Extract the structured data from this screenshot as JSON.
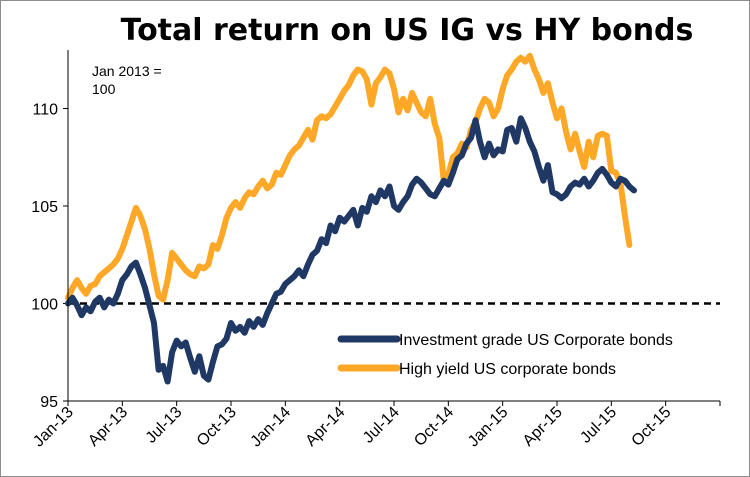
{
  "chart_data": {
    "type": "line",
    "title": "Total return on US IG vs HY bonds",
    "annotation": [
      "Jan 2013 =",
      "100"
    ],
    "xlabel": "",
    "ylabel": "",
    "x_ticks": [
      "Jan-13",
      "Apr-13",
      "Jul-13",
      "Oct-13",
      "Jan-14",
      "Apr-14",
      "Jul-14",
      "Oct-14",
      "Jan-15",
      "Apr-15",
      "Jul-15",
      "Oct-15"
    ],
    "y_ticks": [
      "95",
      "100",
      "105",
      "110"
    ],
    "ylim": [
      95,
      113
    ],
    "xlim_months": [
      0,
      36
    ],
    "reference_line": {
      "y": 100,
      "style": "dashed",
      "color": "#000000"
    },
    "legend_position": "bottom-right",
    "series": [
      {
        "name": "Investment grade US Corporate bonds",
        "color": "#1f3864",
        "points": [
          [
            0.0,
            100.0
          ],
          [
            0.25,
            100.3
          ],
          [
            0.5,
            99.9
          ],
          [
            0.75,
            99.4
          ],
          [
            1.0,
            99.8
          ],
          [
            1.25,
            99.6
          ],
          [
            1.5,
            100.1
          ],
          [
            1.75,
            100.3
          ],
          [
            2.0,
            99.8
          ],
          [
            2.25,
            100.2
          ],
          [
            2.5,
            100.0
          ],
          [
            2.75,
            100.5
          ],
          [
            3.0,
            101.2
          ],
          [
            3.25,
            101.5
          ],
          [
            3.5,
            101.9
          ],
          [
            3.75,
            102.1
          ],
          [
            4.0,
            101.5
          ],
          [
            4.25,
            100.8
          ],
          [
            4.5,
            99.9
          ],
          [
            4.75,
            99.0
          ],
          [
            5.0,
            96.6
          ],
          [
            5.25,
            96.8
          ],
          [
            5.5,
            96.0
          ],
          [
            5.75,
            97.5
          ],
          [
            6.0,
            98.1
          ],
          [
            6.25,
            97.8
          ],
          [
            6.5,
            98.0
          ],
          [
            6.75,
            97.2
          ],
          [
            7.0,
            96.5
          ],
          [
            7.25,
            97.3
          ],
          [
            7.5,
            96.3
          ],
          [
            7.75,
            96.1
          ],
          [
            8.0,
            97.0
          ],
          [
            8.25,
            97.8
          ],
          [
            8.5,
            97.9
          ],
          [
            8.75,
            98.2
          ],
          [
            9.0,
            99.0
          ],
          [
            9.25,
            98.6
          ],
          [
            9.5,
            98.8
          ],
          [
            9.75,
            98.5
          ],
          [
            10.0,
            99.1
          ],
          [
            10.25,
            98.8
          ],
          [
            10.5,
            99.2
          ],
          [
            10.75,
            98.9
          ],
          [
            11.0,
            99.5
          ],
          [
            11.25,
            100.0
          ],
          [
            11.5,
            100.5
          ],
          [
            11.75,
            100.6
          ],
          [
            12.0,
            101.0
          ],
          [
            12.25,
            101.2
          ],
          [
            12.5,
            101.4
          ],
          [
            12.75,
            101.7
          ],
          [
            13.0,
            101.4
          ],
          [
            13.25,
            102.0
          ],
          [
            13.5,
            102.5
          ],
          [
            13.75,
            102.7
          ],
          [
            14.0,
            103.3
          ],
          [
            14.25,
            103.1
          ],
          [
            14.5,
            104.0
          ],
          [
            14.75,
            103.7
          ],
          [
            15.0,
            104.4
          ],
          [
            15.25,
            104.2
          ],
          [
            15.5,
            104.5
          ],
          [
            15.75,
            104.8
          ],
          [
            16.0,
            104.0
          ],
          [
            16.25,
            104.9
          ],
          [
            16.5,
            104.7
          ],
          [
            16.75,
            105.5
          ],
          [
            17.0,
            105.2
          ],
          [
            17.25,
            105.8
          ],
          [
            17.5,
            105.5
          ],
          [
            17.75,
            106.0
          ],
          [
            18.0,
            105.0
          ],
          [
            18.25,
            104.8
          ],
          [
            18.5,
            105.2
          ],
          [
            18.75,
            105.5
          ],
          [
            19.0,
            106.1
          ],
          [
            19.25,
            106.4
          ],
          [
            19.5,
            106.2
          ],
          [
            19.75,
            105.9
          ],
          [
            20.0,
            105.6
          ],
          [
            20.25,
            105.5
          ],
          [
            20.5,
            105.9
          ],
          [
            20.75,
            106.3
          ],
          [
            21.0,
            106.1
          ],
          [
            21.25,
            106.7
          ],
          [
            21.5,
            107.4
          ],
          [
            21.75,
            107.6
          ],
          [
            22.0,
            108.2
          ],
          [
            22.25,
            108.5
          ],
          [
            22.5,
            109.4
          ],
          [
            22.75,
            108.3
          ],
          [
            23.0,
            107.5
          ],
          [
            23.25,
            108.2
          ],
          [
            23.5,
            107.6
          ],
          [
            23.75,
            107.9
          ],
          [
            24.0,
            107.8
          ],
          [
            24.25,
            108.9
          ],
          [
            24.5,
            109.0
          ],
          [
            24.75,
            108.3
          ],
          [
            25.0,
            109.5
          ],
          [
            25.25,
            109.0
          ],
          [
            25.5,
            108.3
          ],
          [
            25.75,
            107.8
          ],
          [
            26.0,
            107.0
          ],
          [
            26.25,
            106.3
          ],
          [
            26.5,
            107.1
          ],
          [
            26.75,
            105.7
          ],
          [
            27.0,
            105.6
          ],
          [
            27.25,
            105.4
          ],
          [
            27.5,
            105.6
          ],
          [
            27.75,
            106.0
          ],
          [
            28.0,
            106.2
          ],
          [
            28.25,
            106.1
          ],
          [
            28.5,
            106.4
          ],
          [
            28.75,
            106.0
          ],
          [
            29.0,
            106.3
          ],
          [
            29.25,
            106.7
          ],
          [
            29.5,
            106.9
          ],
          [
            29.75,
            106.6
          ],
          [
            30.0,
            106.2
          ],
          [
            30.25,
            106.0
          ],
          [
            30.5,
            106.4
          ],
          [
            30.75,
            106.3
          ],
          [
            31.0,
            106.0
          ],
          [
            31.25,
            105.8
          ]
        ]
      },
      {
        "name": "High yield US corporate bonds",
        "color": "#ffa726",
        "points": [
          [
            0.0,
            100.3
          ],
          [
            0.25,
            100.8
          ],
          [
            0.5,
            101.2
          ],
          [
            0.75,
            100.8
          ],
          [
            1.0,
            100.5
          ],
          [
            1.25,
            100.9
          ],
          [
            1.5,
            101.0
          ],
          [
            1.75,
            101.4
          ],
          [
            2.0,
            101.6
          ],
          [
            2.25,
            101.8
          ],
          [
            2.5,
            102.0
          ],
          [
            2.75,
            102.3
          ],
          [
            3.0,
            102.8
          ],
          [
            3.25,
            103.5
          ],
          [
            3.5,
            104.2
          ],
          [
            3.75,
            104.9
          ],
          [
            4.0,
            104.5
          ],
          [
            4.25,
            103.8
          ],
          [
            4.5,
            102.8
          ],
          [
            4.75,
            101.5
          ],
          [
            5.0,
            100.4
          ],
          [
            5.25,
            100.2
          ],
          [
            5.5,
            101.2
          ],
          [
            5.75,
            102.6
          ],
          [
            6.0,
            102.3
          ],
          [
            6.25,
            102.0
          ],
          [
            6.5,
            101.7
          ],
          [
            6.75,
            101.5
          ],
          [
            7.0,
            101.4
          ],
          [
            7.25,
            101.9
          ],
          [
            7.5,
            101.8
          ],
          [
            7.75,
            102.0
          ],
          [
            8.0,
            103.0
          ],
          [
            8.25,
            102.8
          ],
          [
            8.5,
            103.5
          ],
          [
            8.75,
            104.4
          ],
          [
            9.0,
            104.9
          ],
          [
            9.25,
            105.2
          ],
          [
            9.5,
            104.9
          ],
          [
            9.75,
            105.4
          ],
          [
            10.0,
            105.7
          ],
          [
            10.25,
            105.6
          ],
          [
            10.5,
            106.0
          ],
          [
            10.75,
            106.3
          ],
          [
            11.0,
            105.9
          ],
          [
            11.25,
            106.1
          ],
          [
            11.5,
            106.7
          ],
          [
            11.75,
            106.6
          ],
          [
            12.0,
            107.1
          ],
          [
            12.25,
            107.6
          ],
          [
            12.5,
            107.9
          ],
          [
            12.75,
            108.1
          ],
          [
            13.0,
            108.5
          ],
          [
            13.25,
            108.9
          ],
          [
            13.5,
            108.4
          ],
          [
            13.75,
            109.4
          ],
          [
            14.0,
            109.6
          ],
          [
            14.25,
            109.5
          ],
          [
            14.5,
            109.7
          ],
          [
            14.75,
            110.1
          ],
          [
            15.0,
            110.5
          ],
          [
            15.25,
            110.9
          ],
          [
            15.5,
            111.2
          ],
          [
            15.75,
            111.7
          ],
          [
            16.0,
            112.0
          ],
          [
            16.25,
            111.9
          ],
          [
            16.5,
            111.5
          ],
          [
            16.75,
            110.2
          ],
          [
            17.0,
            111.3
          ],
          [
            17.25,
            111.6
          ],
          [
            17.5,
            112.0
          ],
          [
            17.75,
            111.8
          ],
          [
            18.0,
            111.0
          ],
          [
            18.25,
            109.8
          ],
          [
            18.5,
            110.5
          ],
          [
            18.75,
            109.9
          ],
          [
            19.0,
            110.8
          ],
          [
            19.25,
            110.3
          ],
          [
            19.5,
            109.8
          ],
          [
            19.75,
            109.6
          ],
          [
            20.0,
            110.5
          ],
          [
            20.25,
            109.2
          ],
          [
            20.5,
            108.5
          ],
          [
            20.75,
            106.3
          ],
          [
            21.0,
            106.6
          ],
          [
            21.25,
            107.5
          ],
          [
            21.5,
            107.7
          ],
          [
            21.75,
            108.2
          ],
          [
            22.0,
            108.0
          ],
          [
            22.25,
            108.9
          ],
          [
            22.5,
            109.3
          ],
          [
            22.75,
            110.0
          ],
          [
            23.0,
            110.5
          ],
          [
            23.25,
            110.3
          ],
          [
            23.5,
            109.6
          ],
          [
            23.75,
            110.0
          ],
          [
            24.0,
            111.0
          ],
          [
            24.25,
            111.7
          ],
          [
            24.5,
            112.0
          ],
          [
            24.75,
            112.4
          ],
          [
            25.0,
            112.6
          ],
          [
            25.25,
            112.4
          ],
          [
            25.5,
            112.7
          ],
          [
            25.75,
            112.0
          ],
          [
            26.0,
            111.5
          ],
          [
            26.25,
            110.8
          ],
          [
            26.5,
            111.3
          ],
          [
            26.75,
            110.3
          ],
          [
            27.0,
            109.5
          ],
          [
            27.25,
            110.0
          ],
          [
            27.5,
            108.8
          ],
          [
            27.75,
            107.9
          ],
          [
            28.0,
            108.7
          ],
          [
            28.25,
            107.8
          ],
          [
            28.5,
            107.0
          ],
          [
            28.75,
            108.3
          ],
          [
            29.0,
            107.5
          ],
          [
            29.25,
            108.6
          ],
          [
            29.5,
            108.7
          ],
          [
            29.75,
            108.6
          ],
          [
            30.0,
            106.8
          ],
          [
            30.25,
            106.7
          ],
          [
            30.5,
            106.2
          ],
          [
            30.75,
            104.5
          ],
          [
            31.0,
            103.0
          ]
        ]
      }
    ]
  }
}
